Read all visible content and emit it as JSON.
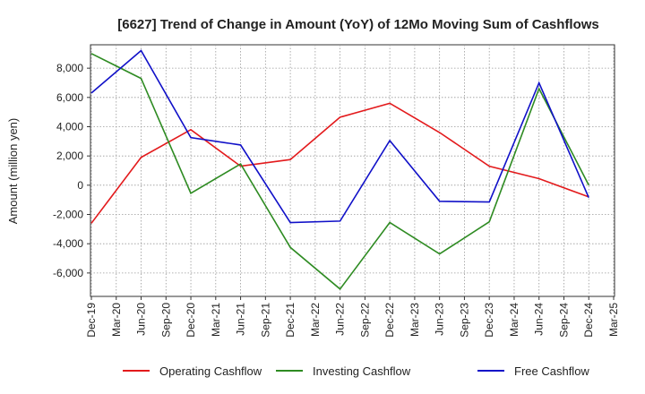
{
  "chart_data": {
    "type": "line",
    "title": "[6627]  Trend of Change in Amount (YoY) of 12Mo Moving Sum of Cashflows",
    "xlabel": "",
    "ylabel": "Amount (million yen)",
    "ylim": [
      -7600,
      9600
    ],
    "yticks": [
      -6000,
      -4000,
      -2000,
      0,
      2000,
      4000,
      6000,
      8000
    ],
    "ytick_labels": [
      "-6,000",
      "-4,000",
      "-2,000",
      "0",
      "2,000",
      "4,000",
      "6,000",
      "8,000"
    ],
    "categories": [
      "Dec-19",
      "Mar-20",
      "Jun-20",
      "Sep-20",
      "Dec-20",
      "Mar-21",
      "Jun-21",
      "Sep-21",
      "Dec-21",
      "Mar-22",
      "Jun-22",
      "Sep-22",
      "Dec-22",
      "Mar-23",
      "Jun-23",
      "Sep-23",
      "Dec-23",
      "Mar-24",
      "Jun-24",
      "Sep-24",
      "Dec-24",
      "Mar-25"
    ],
    "grid": true,
    "legend_position": "bottom",
    "series": [
      {
        "name": "Operating Cashflow",
        "color": "#e31a1c",
        "values": [
          -2600,
          null,
          1900,
          null,
          3800,
          null,
          1300,
          null,
          1750,
          null,
          4650,
          null,
          5600,
          null,
          3600,
          null,
          1300,
          null,
          450,
          null,
          -800,
          null
        ]
      },
      {
        "name": "Investing Cashflow",
        "color": "#2e8b22",
        "values": [
          9000,
          null,
          7300,
          null,
          -550,
          null,
          1450,
          null,
          -4250,
          null,
          -7100,
          null,
          -2550,
          null,
          -4700,
          null,
          -2500,
          null,
          6600,
          null,
          0,
          null
        ]
      },
      {
        "name": "Free Cashflow",
        "color": "#1010c8",
        "values": [
          6300,
          null,
          9200,
          null,
          3250,
          null,
          2750,
          null,
          -2550,
          null,
          -2450,
          null,
          3050,
          null,
          -1100,
          null,
          -1150,
          null,
          7000,
          null,
          -850,
          null
        ]
      }
    ]
  }
}
